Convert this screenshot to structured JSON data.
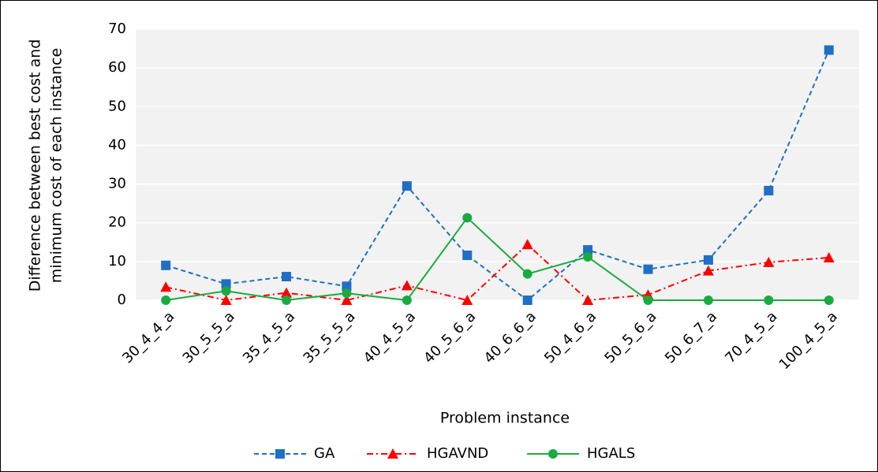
{
  "chart_data": {
    "type": "line",
    "x_label": "Problem instance",
    "y_label": [
      "Difference between best cost and",
      "minimum cost of each instance"
    ],
    "categories": [
      "30_4_4_a",
      "30_5_5_a",
      "35_4_5_a",
      "35_5_5_a",
      "40_4_5_a",
      "40_5_6_a",
      "40_6_6_a",
      "50_4_6_a",
      "50_5_6_a",
      "50_6_7_a",
      "70_4_5_a",
      "100_4_5_a"
    ],
    "series": [
      {
        "name": "GA",
        "color": "#1f6fc5",
        "marker": "square",
        "dash": "6,4",
        "values": [
          9,
          4.2,
          6.1,
          3.6,
          29.5,
          11.6,
          0,
          13,
          8,
          10.4,
          28.3,
          64.6
        ]
      },
      {
        "name": "HGAVND",
        "color": "#ff0000",
        "marker": "triangle",
        "dash": "8,4,2,4",
        "values": [
          3.4,
          0,
          1.9,
          0,
          3.8,
          0,
          14.4,
          0,
          1.4,
          7.6,
          9.8,
          11
        ]
      },
      {
        "name": "HGALS",
        "color": "#1aab40",
        "marker": "circle",
        "dash": "none",
        "values": [
          0,
          2.4,
          0,
          1.8,
          0,
          21.3,
          6.8,
          11.2,
          0,
          0,
          0,
          0
        ]
      }
    ],
    "ylim": [
      0,
      70
    ],
    "yticks": [
      0,
      10,
      20,
      30,
      40,
      50,
      60,
      70
    ],
    "grid": true,
    "legend": "bottom"
  }
}
